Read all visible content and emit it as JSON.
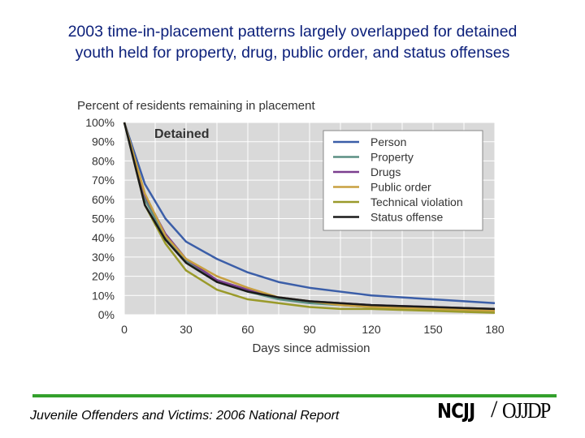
{
  "slide": {
    "title_line1": "2003 time-in-placement patterns largely overlapped for detained",
    "title_line2": "youth held for property, drug, public order, and status offenses",
    "footer": "Juvenile Offenders and Victims: 2006 National Report",
    "logo_left": "NCJJ",
    "logo_slash": "/",
    "logo_right": "OJJDP"
  },
  "chart_data": {
    "type": "line",
    "title": "Percent of residents remaining in placement",
    "panel_label": "Detained",
    "xlabel": "Days since admission",
    "ylabel": "",
    "xlim": [
      0,
      180
    ],
    "ylim": [
      0,
      100
    ],
    "x_ticks": [
      0,
      30,
      60,
      90,
      120,
      150,
      180
    ],
    "y_ticks": [
      0,
      10,
      20,
      30,
      40,
      50,
      60,
      70,
      80,
      90,
      100
    ],
    "y_tick_labels": [
      "0%",
      "10%",
      "20%",
      "30%",
      "40%",
      "50%",
      "60%",
      "70%",
      "80%",
      "90%",
      "100%"
    ],
    "grid": true,
    "legend_position": "top-right",
    "x": [
      0,
      10,
      20,
      30,
      45,
      60,
      75,
      90,
      105,
      120,
      135,
      150,
      165,
      180
    ],
    "series": [
      {
        "name": "Person",
        "color": "#3b5ea8",
        "values": [
          100,
          68,
          50,
          38,
          29,
          22,
          17,
          14,
          12,
          10,
          9,
          8,
          7,
          6
        ]
      },
      {
        "name": "Property",
        "color": "#5b8f83",
        "values": [
          100,
          60,
          40,
          28,
          18,
          12,
          8,
          6,
          5,
          4,
          3.5,
          3,
          2.5,
          2
        ]
      },
      {
        "name": "Drugs",
        "color": "#7b3f8f",
        "values": [
          100,
          62,
          42,
          29,
          18,
          13,
          9,
          7,
          6,
          5,
          4.5,
          4,
          3.5,
          3
        ]
      },
      {
        "name": "Public order",
        "color": "#c8a040",
        "values": [
          100,
          63,
          41,
          29,
          20,
          14,
          9,
          7,
          5,
          4,
          3.5,
          3,
          2.5,
          2
        ]
      },
      {
        "name": "Technical violation",
        "color": "#9a9a2a",
        "values": [
          100,
          57,
          37,
          23,
          13,
          8,
          6,
          4,
          3,
          3,
          2.5,
          2,
          1.5,
          1
        ]
      },
      {
        "name": "Status offense",
        "color": "#1a1a1a",
        "values": [
          100,
          57,
          39,
          27,
          17,
          12,
          9,
          7,
          6,
          5,
          4.5,
          4,
          3.5,
          3
        ]
      }
    ]
  }
}
